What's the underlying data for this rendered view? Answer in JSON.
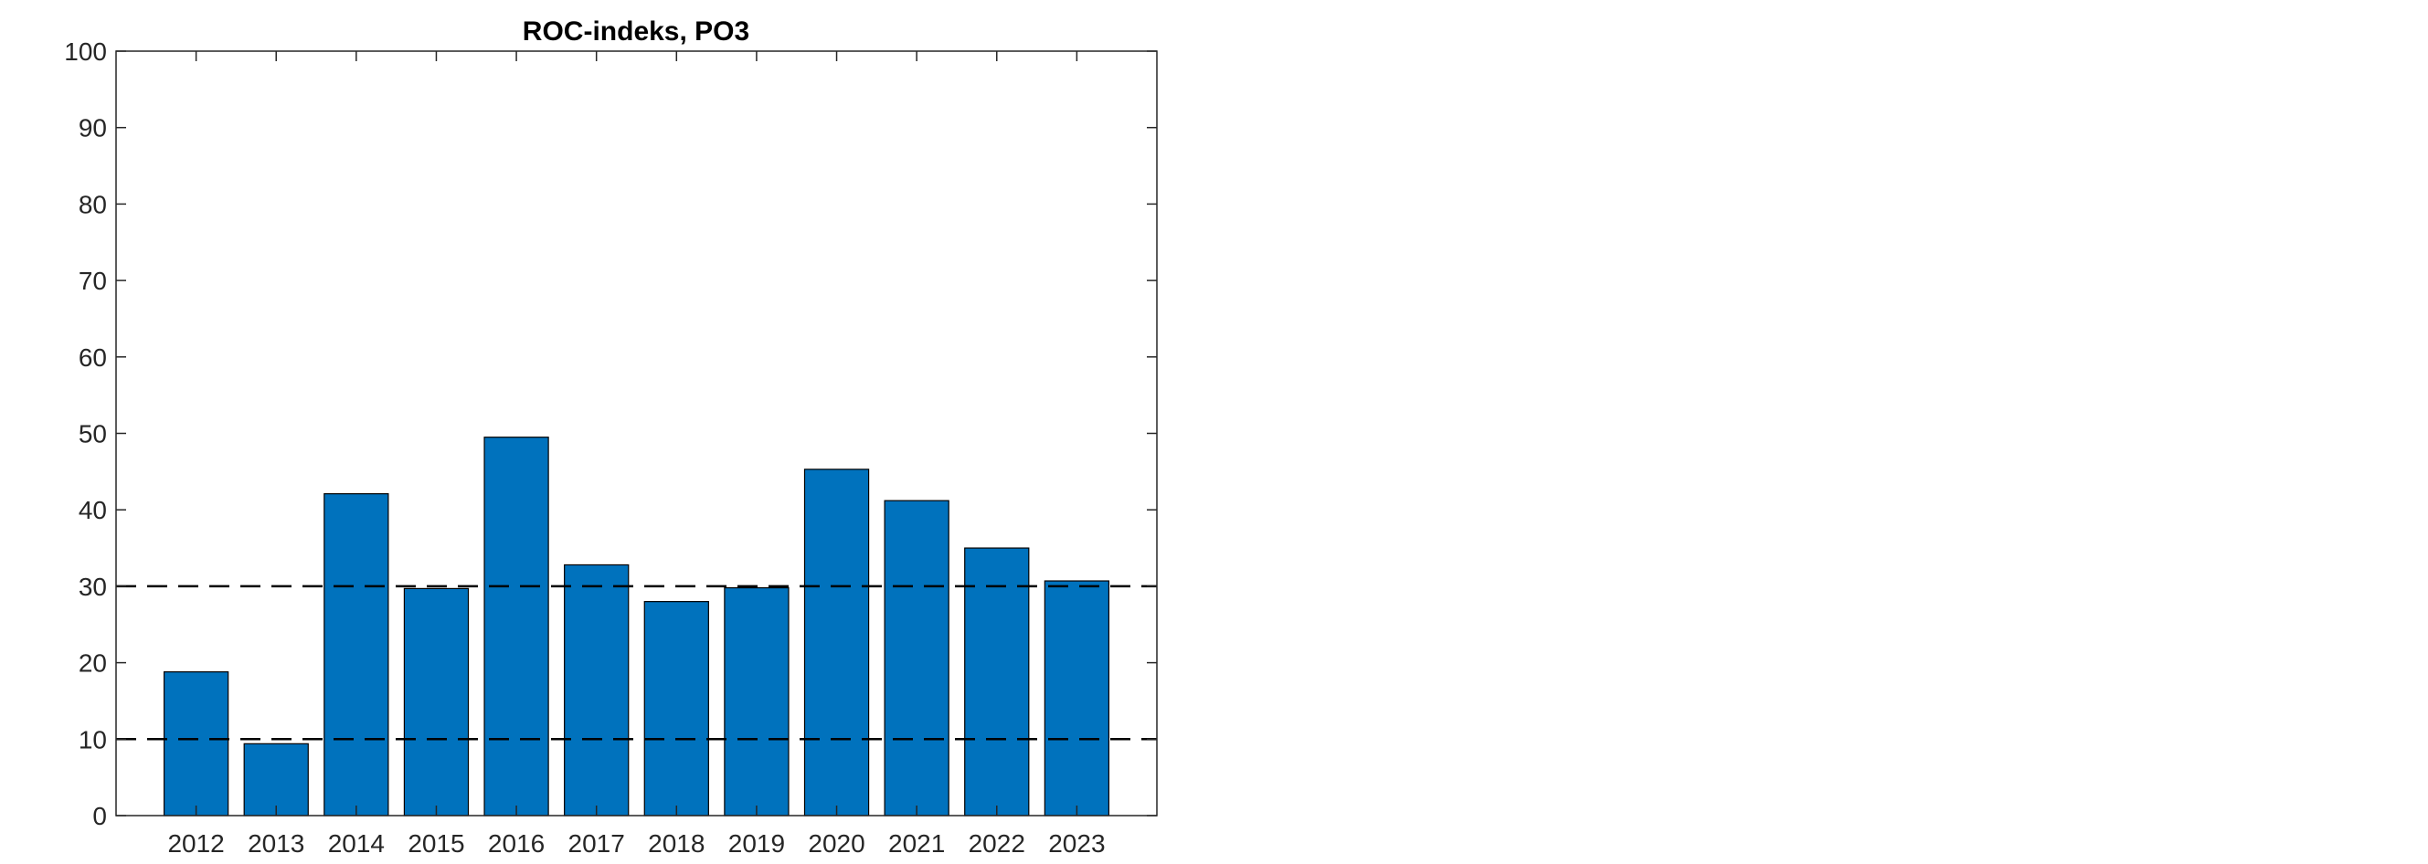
{
  "chart_data": {
    "type": "bar",
    "title": "ROC-indeks, PO3",
    "xlabel": "",
    "ylabel": "",
    "categories": [
      "2012",
      "2013",
      "2014",
      "2015",
      "2016",
      "2017",
      "2018",
      "2019",
      "2020",
      "2021",
      "2022",
      "2023"
    ],
    "values": [
      18.8,
      9.4,
      42.1,
      29.7,
      49.5,
      32.8,
      28.0,
      29.8,
      45.3,
      41.2,
      35.0,
      30.7
    ],
    "ylim": [
      0,
      100
    ],
    "yticks": [
      0,
      10,
      20,
      30,
      40,
      50,
      60,
      70,
      80,
      90,
      100
    ],
    "reference_lines": [
      10,
      30
    ],
    "reference_line_style": "dashed",
    "grid": false,
    "bar_color": "#0072BD",
    "bar_edge_color": "#000000",
    "reference_line_color": "#000000"
  }
}
